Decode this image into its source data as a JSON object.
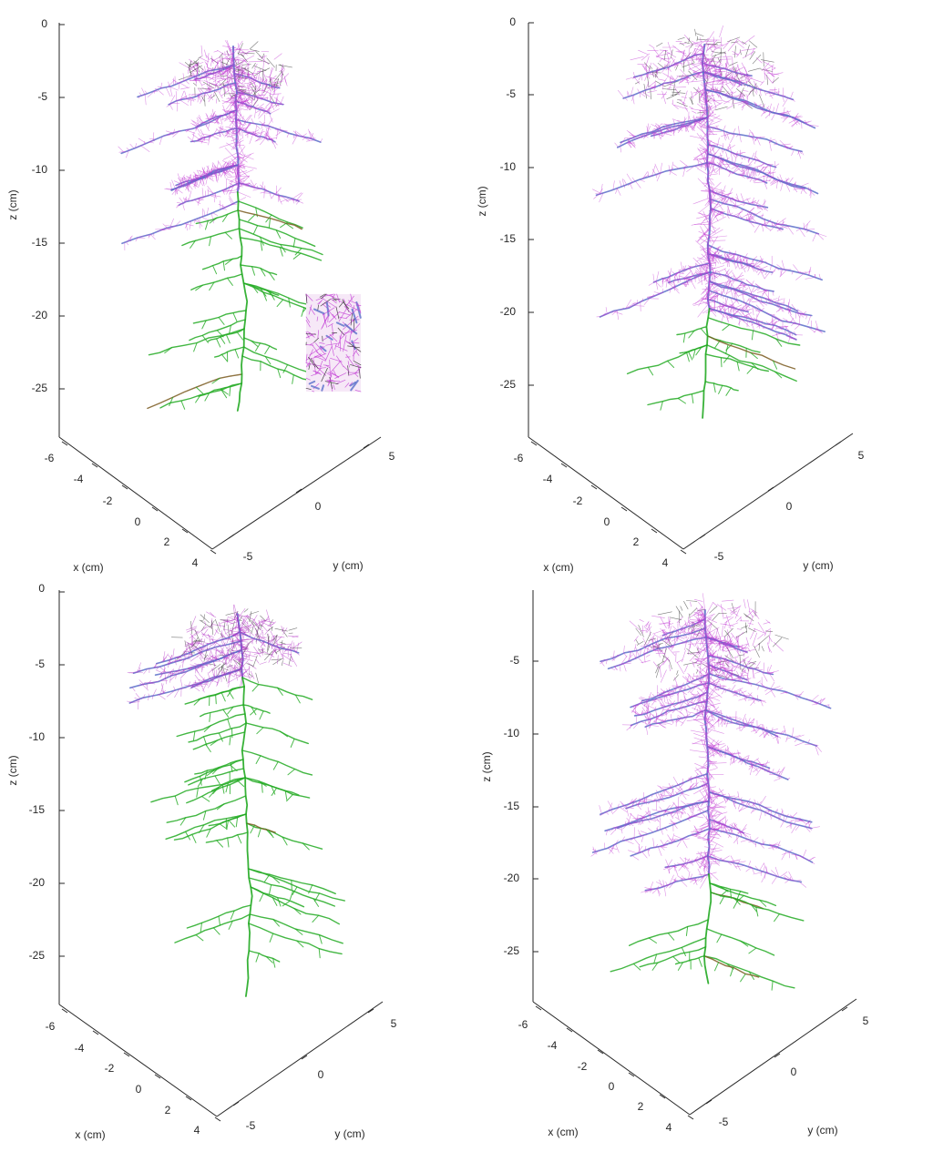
{
  "chart_data": [
    {
      "type": "3d-root-architecture",
      "panel": "top-left",
      "zlabel": "z (cm)",
      "xlabel": "x (cm)",
      "ylabel": "y (cm)",
      "zticks": [
        "0",
        "-5",
        "-10",
        "-15",
        "-20",
        "-25"
      ],
      "xticks": [
        "-6",
        "-4",
        "-2",
        "0",
        "2",
        "4"
      ],
      "yticks": [
        "-5",
        "0",
        "5"
      ],
      "zlim": [
        -28,
        0
      ],
      "xlim": [
        -6,
        4
      ],
      "ylim": [
        -6,
        6
      ],
      "root_depth": -27,
      "lower_green_from": -12,
      "crown_radius": 1.6,
      "has_inset": true,
      "colors": {
        "laterals": "#c23bd4",
        "main": "#5a6fc9",
        "tips": "#22aa22",
        "crown": "#222222",
        "old": "#7a5a20"
      }
    },
    {
      "type": "3d-root-architecture",
      "panel": "top-right",
      "zlabel": "z (cm)",
      "xlabel": "x (cm)",
      "ylabel": "y (cm)",
      "zticks": [
        "0",
        "-5",
        "-10",
        "-15",
        "-20",
        "-25"
      ],
      "xticks": [
        "-6",
        "-4",
        "-2",
        "0",
        "2",
        "4"
      ],
      "yticks": [
        "-5",
        "0",
        "5"
      ],
      "zlim": [
        -28,
        0
      ],
      "xlim": [
        -6,
        4
      ],
      "ylim": [
        -6,
        6
      ],
      "root_depth": -27.5,
      "lower_green_from": -20,
      "crown_radius": 2.2,
      "has_inset": false,
      "colors": {
        "laterals": "#c23bd4",
        "main": "#5a6fc9",
        "tips": "#22aa22",
        "crown": "#222222",
        "old": "#7a5a20"
      }
    },
    {
      "type": "3d-root-architecture",
      "panel": "bottom-left",
      "zlabel": "z (cm)",
      "xlabel": "x (cm)",
      "ylabel": "y (cm)",
      "zticks": [
        "0",
        "-5",
        "-10",
        "-15",
        "-20",
        "-25"
      ],
      "xticks": [
        "-6",
        "-4",
        "-2",
        "0",
        "2",
        "4"
      ],
      "yticks": [
        "-5",
        "0",
        "5"
      ],
      "zlim": [
        -28,
        0
      ],
      "xlim": [
        -6,
        4
      ],
      "ylim": [
        -6,
        6
      ],
      "root_depth": -28,
      "lower_green_from": -6,
      "crown_radius": 1.8,
      "has_inset": false,
      "colors": {
        "laterals": "#b22fc4",
        "main": "#5a6fc9",
        "tips": "#22aa22",
        "crown": "#222222",
        "old": "#7a5a20"
      }
    },
    {
      "type": "3d-root-architecture",
      "panel": "bottom-right",
      "zlabel": "z (cm)",
      "xlabel": "x (cm)",
      "ylabel": "y (cm)",
      "zticks": [
        "-5",
        "-10",
        "-15",
        "-20",
        "-25"
      ],
      "xticks": [
        "-6",
        "-4",
        "-2",
        "0",
        "2",
        "4"
      ],
      "yticks": [
        "-5",
        "0",
        "5"
      ],
      "zlim": [
        -28,
        0
      ],
      "xlim": [
        -6,
        4
      ],
      "ylim": [
        -6,
        6
      ],
      "root_depth": -27.5,
      "lower_green_from": -20,
      "crown_radius": 2.2,
      "has_inset": false,
      "colors": {
        "laterals": "#c23bd4",
        "main": "#5a6fc9",
        "tips": "#22aa22",
        "crown": "#222222",
        "old": "#7a5a20"
      }
    }
  ]
}
